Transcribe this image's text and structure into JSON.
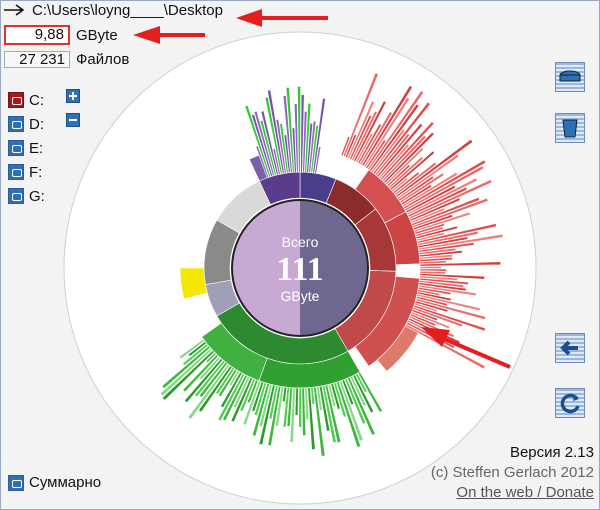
{
  "path": {
    "text": "C:\\Users\\loyng____\\Desktop"
  },
  "size": {
    "value": "9,88",
    "unit": "GByte"
  },
  "files": {
    "count": "27 231",
    "label": "Файлов"
  },
  "drives": [
    {
      "label": "C:",
      "color": "#a4171d"
    },
    {
      "label": "D:",
      "color": "#2f6fb3"
    },
    {
      "label": "E:",
      "color": "#2f6fb3"
    },
    {
      "label": "F:",
      "color": "#2f6fb3"
    },
    {
      "label": "G:",
      "color": "#2f6fb3"
    }
  ],
  "center": {
    "top": "Всего",
    "value": "111",
    "unit": "GByte"
  },
  "summary": {
    "label": "Суммарно"
  },
  "footer": {
    "version": "Версия 2.13",
    "copyright": "(c) Steffen Gerlach 2012",
    "link": "On the web / Donate"
  },
  "colors": {
    "annotation": "#e31e1e",
    "accent": "#2f6fb3"
  }
}
